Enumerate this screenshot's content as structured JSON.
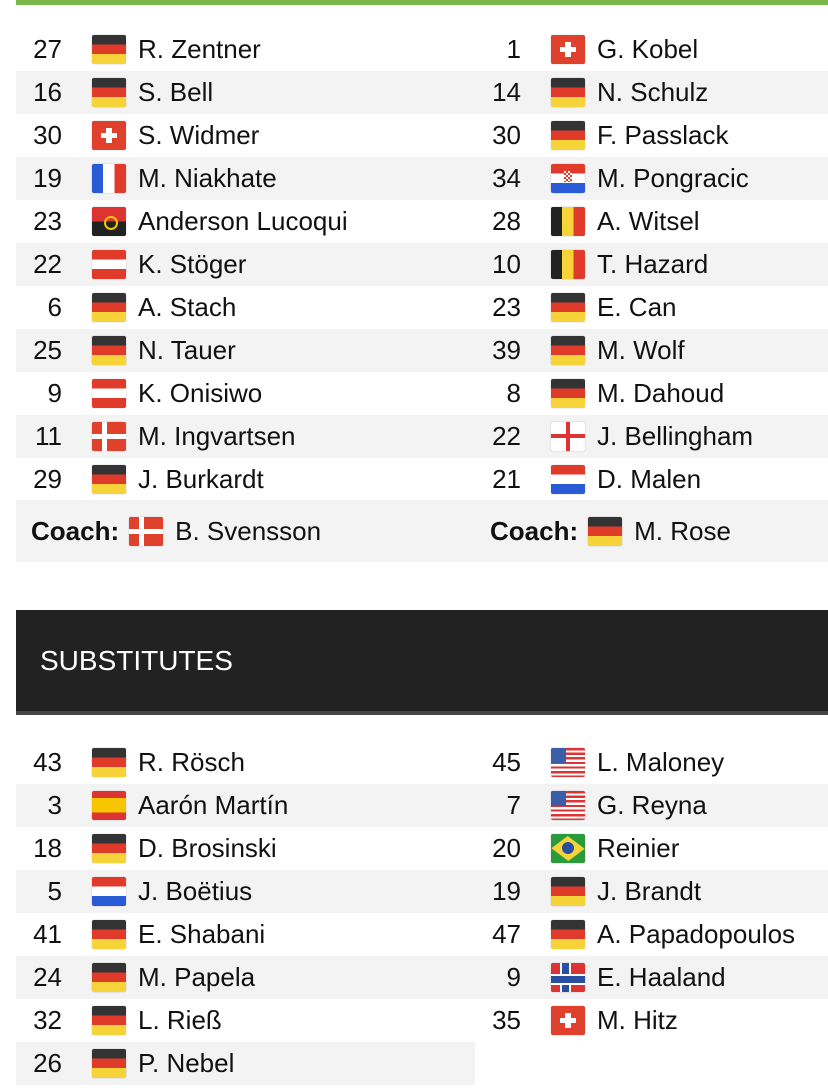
{
  "lineups": {
    "home": [
      {
        "number": "27",
        "flag": "de",
        "name": "R. Zentner"
      },
      {
        "number": "16",
        "flag": "de",
        "name": "S. Bell"
      },
      {
        "number": "30",
        "flag": "ch",
        "name": "S. Widmer"
      },
      {
        "number": "19",
        "flag": "fr",
        "name": "M. Niakhate"
      },
      {
        "number": "23",
        "flag": "ao",
        "name": "Anderson Lucoqui"
      },
      {
        "number": "22",
        "flag": "at",
        "name": "K. Stöger"
      },
      {
        "number": "6",
        "flag": "de",
        "name": "A. Stach"
      },
      {
        "number": "25",
        "flag": "de",
        "name": "N. Tauer"
      },
      {
        "number": "9",
        "flag": "at",
        "name": "K. Onisiwo"
      },
      {
        "number": "11",
        "flag": "dk",
        "name": "M. Ingvartsen"
      },
      {
        "number": "29",
        "flag": "de",
        "name": "J. Burkardt"
      }
    ],
    "away": [
      {
        "number": "1",
        "flag": "ch",
        "name": "G. Kobel"
      },
      {
        "number": "14",
        "flag": "de",
        "name": "N. Schulz"
      },
      {
        "number": "30",
        "flag": "de",
        "name": "F. Passlack"
      },
      {
        "number": "34",
        "flag": "hr",
        "name": "M. Pongracic"
      },
      {
        "number": "28",
        "flag": "be",
        "name": "A. Witsel"
      },
      {
        "number": "10",
        "flag": "be",
        "name": "T. Hazard"
      },
      {
        "number": "23",
        "flag": "de",
        "name": "E. Can"
      },
      {
        "number": "39",
        "flag": "de",
        "name": "M. Wolf"
      },
      {
        "number": "8",
        "flag": "de",
        "name": "M. Dahoud"
      },
      {
        "number": "22",
        "flag": "en",
        "name": "J. Bellingham"
      },
      {
        "number": "21",
        "flag": "nl",
        "name": "D. Malen"
      }
    ],
    "coach_label": "Coach:",
    "home_coach": {
      "flag": "dk",
      "name": "B. Svensson"
    },
    "away_coach": {
      "flag": "de",
      "name": "M. Rose"
    }
  },
  "substitutes": {
    "title": "SUBSTITUTES",
    "home": [
      {
        "number": "43",
        "flag": "de",
        "name": "R. Rösch"
      },
      {
        "number": "3",
        "flag": "es",
        "name": "Aarón Martín"
      },
      {
        "number": "18",
        "flag": "de",
        "name": "D. Brosinski"
      },
      {
        "number": "5",
        "flag": "nl",
        "name": "J. Boëtius"
      },
      {
        "number": "41",
        "flag": "de",
        "name": "E. Shabani"
      },
      {
        "number": "24",
        "flag": "de",
        "name": "M. Papela"
      },
      {
        "number": "32",
        "flag": "de",
        "name": "L. Rieß"
      },
      {
        "number": "26",
        "flag": "de",
        "name": "P. Nebel"
      }
    ],
    "away": [
      {
        "number": "45",
        "flag": "us",
        "name": "L. Maloney"
      },
      {
        "number": "7",
        "flag": "us",
        "name": "G. Reyna"
      },
      {
        "number": "20",
        "flag": "br",
        "name": "Reinier"
      },
      {
        "number": "19",
        "flag": "de",
        "name": "J. Brandt"
      },
      {
        "number": "47",
        "flag": "de",
        "name": "A. Papadopoulos"
      },
      {
        "number": "9",
        "flag": "no",
        "name": "E. Haaland"
      },
      {
        "number": "35",
        "flag": "ch",
        "name": "M. Hitz"
      }
    ]
  },
  "colors": {
    "accent_bar": "#79b74a",
    "header_bg": "#222222",
    "row_alt": "#f3f3f3"
  }
}
